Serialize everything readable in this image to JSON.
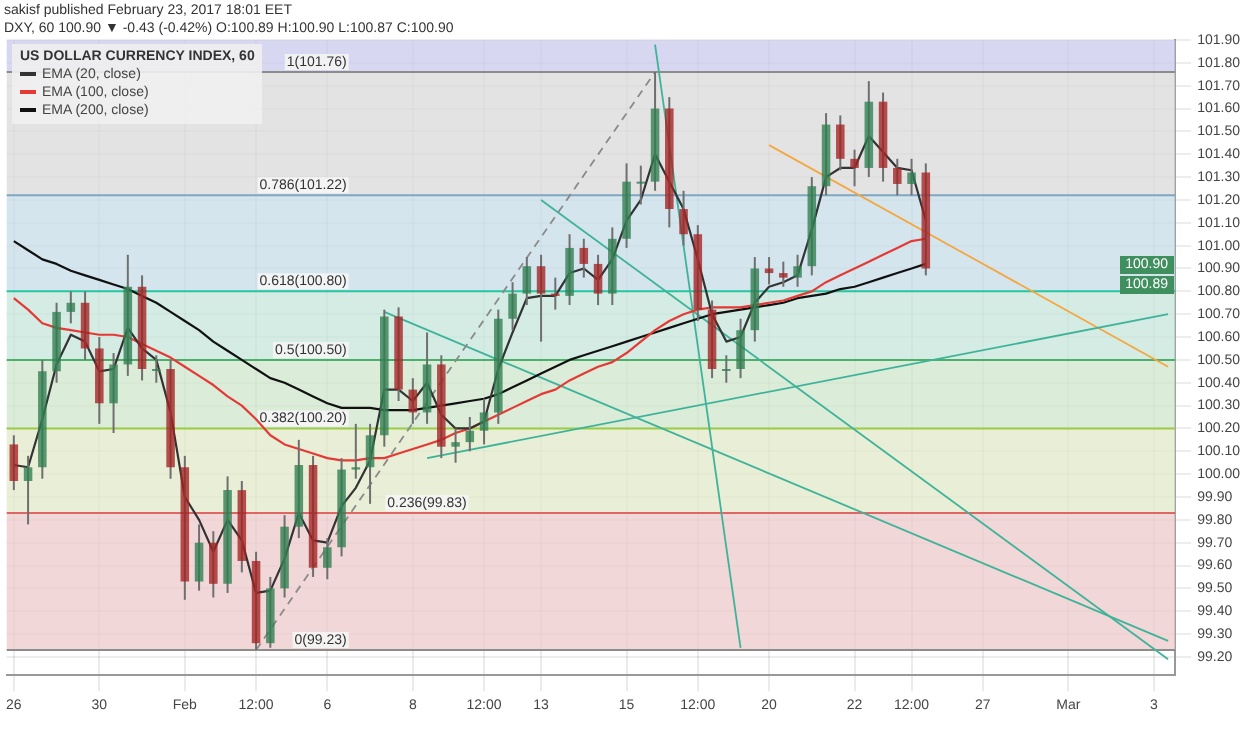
{
  "chart_data": {
    "type": "candlestick",
    "title": "US DOLLAR CURRENCY INDEX, 60",
    "categories": [
      "26",
      null,
      null,
      null,
      null,
      null,
      "30",
      null,
      null,
      null,
      null,
      null,
      "Feb",
      null,
      null,
      null,
      null,
      "12:00",
      null,
      null,
      null,
      null,
      "6",
      null,
      null,
      null,
      null,
      null,
      "8",
      null,
      null,
      null,
      null,
      "12:00",
      null,
      null,
      null,
      "13",
      null,
      null,
      null,
      null,
      null,
      "15",
      null,
      null,
      null,
      null,
      "12:00",
      null,
      null,
      null,
      null,
      "20",
      null,
      null,
      null,
      null,
      null,
      "22",
      null,
      null,
      null,
      "12:00",
      null,
      null,
      null,
      null,
      "27",
      null,
      null,
      null,
      null,
      null,
      "Mar",
      null,
      null,
      null,
      null,
      null,
      "3",
      null
    ],
    "ohlc": [
      [
        100.13,
        100.17,
        99.93,
        99.97
      ],
      [
        99.97,
        100.08,
        99.78,
        100.03
      ],
      [
        100.03,
        100.5,
        99.98,
        100.45
      ],
      [
        100.45,
        100.75,
        100.4,
        100.71
      ],
      [
        100.71,
        100.8,
        100.66,
        100.75
      ],
      [
        100.75,
        100.8,
        100.5,
        100.55
      ],
      [
        100.55,
        100.6,
        100.22,
        100.31
      ],
      [
        100.31,
        100.53,
        100.18,
        100.48
      ],
      [
        100.48,
        100.96,
        100.43,
        100.82
      ],
      [
        100.82,
        100.87,
        100.41,
        100.46
      ],
      [
        100.46,
        100.52,
        100.4,
        100.46
      ],
      [
        100.46,
        100.5,
        99.98,
        100.03
      ],
      [
        100.03,
        100.08,
        99.45,
        99.53
      ],
      [
        99.53,
        99.78,
        99.49,
        99.7
      ],
      [
        99.7,
        99.75,
        99.46,
        99.52
      ],
      [
        99.52,
        99.99,
        99.48,
        99.93
      ],
      [
        99.93,
        99.97,
        99.57,
        99.62
      ],
      [
        99.62,
        99.66,
        99.23,
        99.26
      ],
      [
        99.26,
        99.55,
        99.24,
        99.5
      ],
      [
        99.5,
        99.82,
        99.46,
        99.77
      ],
      [
        99.77,
        100.15,
        99.72,
        100.04
      ],
      [
        100.04,
        100.08,
        99.55,
        99.59
      ],
      [
        99.59,
        99.72,
        99.54,
        99.68
      ],
      [
        99.68,
        100.07,
        99.64,
        100.02
      ],
      [
        100.02,
        100.22,
        99.98,
        100.03
      ],
      [
        100.03,
        100.22,
        99.87,
        100.17
      ],
      [
        100.17,
        100.72,
        100.12,
        100.69
      ],
      [
        100.69,
        100.73,
        100.32,
        100.37
      ],
      [
        100.37,
        100.42,
        100.22,
        100.27
      ],
      [
        100.27,
        100.62,
        100.22,
        100.48
      ],
      [
        100.48,
        100.52,
        100.07,
        100.12
      ],
      [
        100.12,
        100.2,
        100.05,
        100.14
      ],
      [
        100.14,
        100.25,
        100.1,
        100.19
      ],
      [
        100.19,
        100.33,
        100.13,
        100.27
      ],
      [
        100.27,
        100.72,
        100.22,
        100.68
      ],
      [
        100.68,
        100.84,
        100.63,
        100.79
      ],
      [
        100.79,
        100.95,
        100.74,
        100.91
      ],
      [
        100.91,
        100.96,
        100.58,
        100.79
      ],
      [
        100.79,
        100.86,
        100.72,
        100.78
      ],
      [
        100.78,
        101.05,
        100.74,
        100.99
      ],
      [
        100.99,
        101.03,
        100.86,
        100.92
      ],
      [
        100.92,
        100.96,
        100.74,
        100.79
      ],
      [
        100.79,
        101.08,
        100.74,
        101.03
      ],
      [
        101.03,
        101.36,
        100.99,
        101.28
      ],
      [
        101.28,
        101.35,
        101.18,
        101.28
      ],
      [
        101.28,
        101.76,
        101.24,
        101.6
      ],
      [
        101.6,
        101.65,
        101.08,
        101.16
      ],
      [
        101.16,
        101.24,
        101.0,
        101.05
      ],
      [
        101.05,
        101.09,
        100.67,
        100.72
      ],
      [
        100.72,
        100.76,
        100.42,
        100.46
      ],
      [
        100.46,
        100.52,
        100.4,
        100.46
      ],
      [
        100.46,
        100.68,
        100.42,
        100.63
      ],
      [
        100.63,
        100.95,
        100.58,
        100.9
      ],
      [
        100.9,
        100.95,
        100.83,
        100.88
      ],
      [
        100.88,
        100.93,
        100.82,
        100.86
      ],
      [
        100.86,
        100.96,
        100.82,
        100.91
      ],
      [
        100.91,
        101.3,
        100.87,
        101.26
      ],
      [
        101.26,
        101.58,
        101.22,
        101.53
      ],
      [
        101.53,
        101.57,
        101.33,
        101.38
      ],
      [
        101.38,
        101.42,
        101.26,
        101.34
      ],
      [
        101.34,
        101.72,
        101.3,
        101.63
      ],
      [
        101.63,
        101.67,
        101.28,
        101.34
      ],
      [
        101.34,
        101.38,
        101.22,
        101.27
      ],
      [
        101.27,
        101.38,
        101.22,
        101.32
      ],
      [
        101.32,
        101.36,
        100.87,
        100.9
      ],
      null,
      null,
      null,
      null,
      null,
      null,
      null,
      null,
      null,
      null,
      null,
      null,
      null,
      null,
      null,
      null,
      null
    ],
    "series": [
      {
        "type": "line",
        "name": "EMA (20, close)",
        "color": "#333333",
        "values": [
          100.04,
          100.03,
          100.24,
          100.48,
          100.61,
          100.58,
          100.45,
          100.46,
          100.64,
          100.55,
          100.5,
          100.27,
          99.9,
          99.8,
          99.66,
          99.8,
          99.71,
          99.48,
          99.49,
          99.63,
          99.83,
          99.71,
          99.7,
          99.86,
          99.94,
          100.06,
          100.37,
          100.37,
          100.32,
          100.4,
          100.26,
          100.2,
          100.2,
          100.23,
          100.46,
          100.62,
          100.77,
          100.78,
          100.78,
          100.88,
          100.9,
          100.85,
          100.94,
          101.11,
          101.2,
          101.4,
          101.28,
          101.16,
          100.94,
          100.7,
          100.58,
          100.6,
          100.75,
          100.82,
          100.84,
          100.87,
          101.07,
          101.3,
          101.34,
          101.34,
          101.48,
          101.41,
          101.34,
          101.33,
          101.11,
          null,
          null,
          null,
          null,
          null,
          null,
          null,
          null,
          null,
          null,
          null,
          null,
          null,
          null,
          null,
          null,
          null
        ]
      },
      {
        "type": "line",
        "name": "EMA (100, close)",
        "color": "#e53935",
        "values": [
          100.77,
          100.72,
          100.66,
          100.64,
          100.63,
          100.62,
          100.61,
          100.61,
          100.6,
          100.57,
          100.54,
          100.51,
          100.47,
          100.43,
          100.39,
          100.34,
          100.3,
          100.24,
          100.17,
          100.13,
          100.11,
          100.09,
          100.07,
          100.06,
          100.06,
          100.07,
          100.07,
          100.09,
          100.11,
          100.13,
          100.15,
          100.18,
          100.2,
          100.23,
          100.26,
          100.29,
          100.32,
          100.35,
          100.37,
          100.41,
          100.44,
          100.47,
          100.49,
          100.53,
          100.58,
          100.63,
          100.67,
          100.7,
          100.72,
          100.73,
          100.73,
          100.73,
          100.74,
          100.75,
          100.76,
          100.78,
          100.8,
          100.84,
          100.87,
          100.9,
          100.93,
          100.96,
          100.99,
          101.02,
          101.03,
          null,
          null,
          null,
          null,
          null,
          null,
          null,
          null,
          null,
          null,
          null,
          null,
          null,
          null,
          null,
          null,
          null
        ]
      },
      {
        "type": "line",
        "name": "EMA (200, close)",
        "color": "#111111",
        "values": [
          101.02,
          100.98,
          100.94,
          100.92,
          100.89,
          100.87,
          100.85,
          100.83,
          100.81,
          100.78,
          100.75,
          100.71,
          100.67,
          100.63,
          100.58,
          100.54,
          100.5,
          100.46,
          100.42,
          100.4,
          100.37,
          100.34,
          100.31,
          100.29,
          100.29,
          100.29,
          100.28,
          100.28,
          100.28,
          100.29,
          100.3,
          100.31,
          100.32,
          100.33,
          100.35,
          100.38,
          100.41,
          100.44,
          100.47,
          100.5,
          100.52,
          100.54,
          100.56,
          100.58,
          100.6,
          100.62,
          100.64,
          100.66,
          100.68,
          100.7,
          100.71,
          100.72,
          100.73,
          100.74,
          100.75,
          100.77,
          100.78,
          100.79,
          100.81,
          100.82,
          100.84,
          100.86,
          100.88,
          100.9,
          100.92,
          null,
          null,
          null,
          null,
          null,
          null,
          null,
          null,
          null,
          null,
          null,
          null,
          null,
          null,
          null,
          null,
          null
        ]
      },
      {
        "type": "line",
        "color": "#8a8a8a",
        "line_style": "dashed",
        "values": [
          null,
          null,
          null,
          null,
          null,
          null,
          null,
          null,
          null,
          null,
          null,
          null,
          null,
          null,
          null,
          null,
          null,
          99.23,
          null,
          null,
          null,
          null,
          null,
          null,
          null,
          null,
          null,
          null,
          null,
          null,
          null,
          null,
          null,
          null,
          null,
          null,
          null,
          null,
          null,
          null,
          null,
          null,
          null,
          null,
          null,
          101.76,
          null,
          null,
          null,
          null,
          null,
          null,
          null,
          null,
          null,
          null,
          null,
          null,
          null,
          null,
          null,
          null,
          null,
          null,
          null,
          null,
          null,
          null,
          null,
          null,
          null,
          null,
          null,
          null,
          null,
          null,
          null,
          null,
          null,
          null,
          null,
          null
        ]
      },
      {
        "type": "line",
        "color": "#3fb39a",
        "values": [
          null,
          null,
          null,
          null,
          null,
          null,
          null,
          null,
          null,
          null,
          null,
          null,
          null,
          null,
          null,
          null,
          null,
          null,
          null,
          null,
          null,
          null,
          null,
          null,
          null,
          null,
          null,
          null,
          null,
          100.07,
          null,
          null,
          null,
          null,
          null,
          null,
          null,
          null,
          null,
          null,
          null,
          null,
          null,
          null,
          null,
          null,
          null,
          null,
          null,
          null,
          null,
          null,
          null,
          null,
          null,
          null,
          null,
          null,
          null,
          null,
          null,
          null,
          null,
          null,
          null,
          null,
          null,
          null,
          null,
          null,
          null,
          null,
          null,
          null,
          null,
          null,
          null,
          null,
          null,
          null,
          null,
          100.7
        ]
      },
      {
        "type": "line",
        "color": "#3fb39a",
        "values": [
          null,
          null,
          null,
          null,
          null,
          null,
          null,
          null,
          null,
          null,
          null,
          null,
          null,
          null,
          null,
          null,
          null,
          null,
          null,
          null,
          null,
          null,
          null,
          null,
          null,
          null,
          100.71,
          null,
          null,
          null,
          null,
          null,
          null,
          null,
          null,
          null,
          null,
          null,
          null,
          null,
          null,
          null,
          null,
          null,
          null,
          null,
          null,
          null,
          null,
          null,
          null,
          null,
          null,
          null,
          null,
          null,
          null,
          null,
          null,
          null,
          null,
          null,
          null,
          null,
          null,
          null,
          null,
          null,
          null,
          null,
          null,
          null,
          null,
          null,
          null,
          null,
          null,
          null,
          null,
          null,
          null,
          99.27
        ]
      },
      {
        "type": "line",
        "color": "#3fb39a",
        "values": [
          null,
          null,
          null,
          null,
          null,
          null,
          null,
          null,
          null,
          null,
          null,
          null,
          null,
          null,
          null,
          null,
          null,
          null,
          null,
          null,
          null,
          null,
          null,
          null,
          null,
          null,
          null,
          null,
          null,
          null,
          null,
          null,
          null,
          null,
          null,
          null,
          null,
          101.2,
          null,
          null,
          null,
          null,
          null,
          null,
          null,
          null,
          null,
          null,
          null,
          null,
          null,
          null,
          null,
          null,
          null,
          null,
          null,
          null,
          null,
          null,
          null,
          null,
          null,
          null,
          null,
          null,
          null,
          null,
          null,
          null,
          null,
          null,
          null,
          null,
          null,
          null,
          null,
          null,
          null,
          null,
          null,
          99.19
        ]
      },
      {
        "type": "line",
        "color": "#3fb39a",
        "values": [
          null,
          null,
          null,
          null,
          null,
          null,
          null,
          null,
          null,
          null,
          null,
          null,
          null,
          null,
          null,
          null,
          null,
          null,
          null,
          null,
          null,
          null,
          null,
          null,
          null,
          null,
          null,
          null,
          null,
          null,
          null,
          null,
          null,
          null,
          null,
          null,
          null,
          null,
          null,
          null,
          null,
          null,
          null,
          null,
          null,
          101.88,
          null,
          null,
          null,
          null,
          null,
          99.24,
          null,
          null,
          null,
          null,
          null,
          null,
          null,
          null,
          null,
          null,
          null,
          null,
          null,
          null,
          null,
          null,
          null,
          null,
          null,
          null,
          null,
          null,
          null,
          null,
          null,
          null,
          null,
          null,
          null,
          null
        ]
      },
      {
        "type": "line",
        "color": "#f5a742",
        "values": [
          null,
          null,
          null,
          null,
          null,
          null,
          null,
          null,
          null,
          null,
          null,
          null,
          null,
          null,
          null,
          null,
          null,
          null,
          null,
          null,
          null,
          null,
          null,
          null,
          null,
          null,
          null,
          null,
          null,
          null,
          null,
          null,
          null,
          null,
          null,
          null,
          null,
          null,
          null,
          null,
          null,
          null,
          null,
          null,
          null,
          null,
          null,
          null,
          null,
          null,
          null,
          null,
          null,
          101.44,
          null,
          null,
          null,
          null,
          null,
          null,
          null,
          null,
          null,
          null,
          null,
          null,
          null,
          null,
          null,
          null,
          null,
          null,
          null,
          null,
          null,
          null,
          null,
          null,
          null,
          null,
          null,
          100.47
        ]
      }
    ],
    "ylim": [
      99.12,
      101.9
    ],
    "yticks": [
      {
        "value": 99.2,
        "label": "99.20"
      },
      {
        "value": 99.3,
        "label": "99.30"
      },
      {
        "value": 99.4,
        "label": "99.40"
      },
      {
        "value": 99.5,
        "label": "99.50"
      },
      {
        "value": 99.6,
        "label": "99.60"
      },
      {
        "value": 99.7,
        "label": "99.70"
      },
      {
        "value": 99.8,
        "label": "99.80"
      },
      {
        "value": 99.9,
        "label": "99.90"
      },
      {
        "value": 100,
        "label": "100.00"
      },
      {
        "value": 100.1,
        "label": "100.10"
      },
      {
        "value": 100.2,
        "label": "100.20"
      },
      {
        "value": 100.3,
        "label": "100.30"
      },
      {
        "value": 100.4,
        "label": "100.40"
      },
      {
        "value": 100.5,
        "label": "100.50"
      },
      {
        "value": 100.6,
        "label": "100.60"
      },
      {
        "value": 100.7,
        "label": "100.70"
      },
      {
        "value": 100.8,
        "label": "100.80"
      },
      {
        "value": 100.9,
        "label": "100.90"
      },
      {
        "value": 101,
        "label": "101.00"
      },
      {
        "value": 101.1,
        "label": "101.10"
      },
      {
        "value": 101.2,
        "label": "101.20"
      },
      {
        "value": 101.3,
        "label": "101.30"
      },
      {
        "value": 101.4,
        "label": "101.40"
      },
      {
        "value": 101.5,
        "label": "101.50"
      },
      {
        "value": 101.6,
        "label": "101.60"
      },
      {
        "value": 101.7,
        "label": "101.70"
      },
      {
        "value": 101.8,
        "label": "101.80"
      },
      {
        "value": 101.9,
        "label": "101.90"
      }
    ],
    "grid": true,
    "legend": "top left",
    "marker": "none",
    "bands": [
      {
        "axis": "y",
        "from": 99.23,
        "to": 99.83,
        "color": "#eccaca"
      },
      {
        "axis": "y",
        "from": 99.83,
        "to": 100.2,
        "color": "#e1e8c8"
      },
      {
        "axis": "y",
        "from": 100.2,
        "to": 100.5,
        "color": "#cfe6cc"
      },
      {
        "axis": "y",
        "from": 100.5,
        "to": 100.8,
        "color": "#c6e6da"
      },
      {
        "axis": "y",
        "from": 100.8,
        "to": 101.22,
        "color": "#c6dce8"
      },
      {
        "axis": "y",
        "from": 101.22,
        "to": 101.76,
        "color": "#d9d9d9"
      },
      {
        "axis": "y",
        "from": 101.76,
        "to": 101.9,
        "color": "#c9c9ec"
      }
    ],
    "ref_lines": [
      {
        "axis": "y",
        "value": 99.23,
        "label": "0(99.23)",
        "color": "#8c8c8c"
      },
      {
        "axis": "y",
        "value": 99.83,
        "label": "0.236(99.83)",
        "color": "#e06666"
      },
      {
        "axis": "y",
        "value": 100.2,
        "label": "0.382(100.20)",
        "color": "#9ccc45"
      },
      {
        "axis": "y",
        "value": 100.5,
        "label": "0.5(100.50)",
        "color": "#4caf6a"
      },
      {
        "axis": "y",
        "value": 100.8,
        "label": "0.618(100.80)",
        "color": "#26c6a0"
      },
      {
        "axis": "y",
        "value": 101.22,
        "label": "0.786(101.22)",
        "color": "#7fa7c0"
      },
      {
        "axis": "y",
        "value": 101.76,
        "label": "1(101.76)",
        "color": "#8c8c8c"
      }
    ],
    "annotations": [
      "sakisf published February 23, 2017 18:01 EET",
      "DXY, 60 100.90 ▼ -0.43 (-0.42%) O:100.89 H:100.90 L:100.87 C:100.90",
      "100.90",
      "100.89"
    ]
  }
}
